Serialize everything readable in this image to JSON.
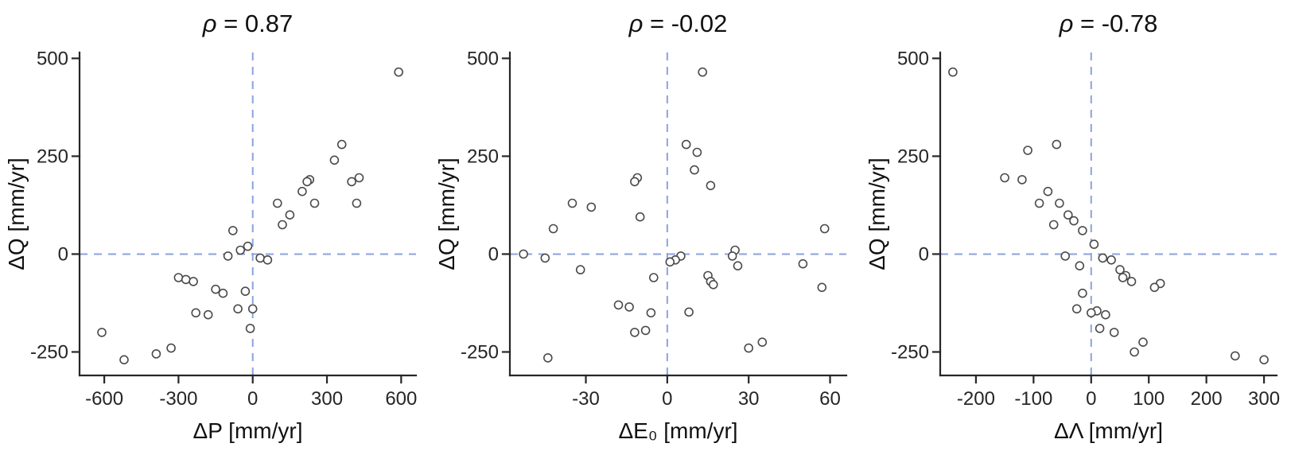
{
  "figure": {
    "background": "#ffffff"
  },
  "style": {
    "axis_color": "#262626",
    "text_color": "#111111",
    "crosshair_color": "#8ba2de",
    "point_stroke": "#4a4a4a",
    "point_fill": "#ffffff"
  },
  "chart_data": [
    {
      "type": "scatter",
      "title": "ρ = 0.87",
      "title_symbol": "ρ",
      "title_rest": " = 0.87",
      "xlabel": "ΔP [mm/yr]",
      "ylabel": "ΔQ [mm/yr]",
      "xlim": [
        -700,
        660
      ],
      "ylim": [
        -310,
        515
      ],
      "xticks": [
        -600,
        -300,
        0,
        300,
        600
      ],
      "yticks": [
        -250,
        0,
        250,
        500
      ],
      "grid": false,
      "legend": false,
      "crosshair": {
        "x": 0,
        "y": 0
      },
      "points": [
        [
          590,
          465
        ],
        [
          360,
          280
        ],
        [
          330,
          240
        ],
        [
          430,
          195
        ],
        [
          400,
          185
        ],
        [
          230,
          190
        ],
        [
          220,
          185
        ],
        [
          200,
          160
        ],
        [
          250,
          130
        ],
        [
          420,
          130
        ],
        [
          100,
          130
        ],
        [
          150,
          100
        ],
        [
          120,
          75
        ],
        [
          -80,
          60
        ],
        [
          -20,
          20
        ],
        [
          -50,
          10
        ],
        [
          -100,
          -5
        ],
        [
          30,
          -10
        ],
        [
          60,
          -15
        ],
        [
          -300,
          -60
        ],
        [
          -270,
          -65
        ],
        [
          -240,
          -70
        ],
        [
          -150,
          -90
        ],
        [
          -30,
          -95
        ],
        [
          -120,
          -100
        ],
        [
          -60,
          -140
        ],
        [
          0,
          -140
        ],
        [
          -230,
          -150
        ],
        [
          -180,
          -155
        ],
        [
          -10,
          -190
        ],
        [
          -610,
          -200
        ],
        [
          -330,
          -240
        ],
        [
          -390,
          -255
        ],
        [
          -520,
          -270
        ]
      ]
    },
    {
      "type": "scatter",
      "title": "ρ = -0.02",
      "title_symbol": "ρ",
      "title_rest": " = -0.02",
      "xlabel": "ΔE₀ [mm/yr]",
      "ylabel": "ΔQ [mm/yr]",
      "xlim": [
        -58,
        66
      ],
      "ylim": [
        -310,
        515
      ],
      "xticks": [
        -30,
        0,
        30,
        60
      ],
      "yticks": [
        -250,
        0,
        250,
        500
      ],
      "grid": false,
      "legend": false,
      "crosshair": {
        "x": 0,
        "y": 0
      },
      "points": [
        [
          13,
          465
        ],
        [
          7,
          280
        ],
        [
          11,
          260
        ],
        [
          10,
          215
        ],
        [
          -11,
          195
        ],
        [
          -12,
          185
        ],
        [
          16,
          175
        ],
        [
          -35,
          130
        ],
        [
          -28,
          120
        ],
        [
          -10,
          95
        ],
        [
          -42,
          65
        ],
        [
          58,
          65
        ],
        [
          25,
          10
        ],
        [
          -53,
          0
        ],
        [
          5,
          -5
        ],
        [
          24,
          -5
        ],
        [
          -45,
          -10
        ],
        [
          3,
          -15
        ],
        [
          1,
          -20
        ],
        [
          50,
          -25
        ],
        [
          26,
          -30
        ],
        [
          -32,
          -40
        ],
        [
          15,
          -55
        ],
        [
          -5,
          -60
        ],
        [
          16,
          -70
        ],
        [
          17,
          -78
        ],
        [
          57,
          -85
        ],
        [
          -18,
          -130
        ],
        [
          -14,
          -135
        ],
        [
          8,
          -148
        ],
        [
          -6,
          -150
        ],
        [
          -8,
          -195
        ],
        [
          -12,
          -200
        ],
        [
          35,
          -225
        ],
        [
          30,
          -240
        ],
        [
          -44,
          -265
        ]
      ]
    },
    {
      "type": "scatter",
      "title": "ρ = -0.78",
      "title_symbol": "ρ",
      "title_rest": " = -0.78",
      "xlabel": "ΔΛ [mm/yr]",
      "ylabel": "ΔQ [mm/yr]",
      "xlim": [
        -262,
        322
      ],
      "ylim": [
        -310,
        515
      ],
      "xticks": [
        -200,
        -100,
        0,
        100,
        200,
        300
      ],
      "yticks": [
        -250,
        0,
        250,
        500
      ],
      "grid": false,
      "legend": false,
      "crosshair": {
        "x": 0,
        "y": 0
      },
      "points": [
        [
          -240,
          465
        ],
        [
          -60,
          280
        ],
        [
          -110,
          265
        ],
        [
          -150,
          195
        ],
        [
          -120,
          190
        ],
        [
          -75,
          160
        ],
        [
          -90,
          130
        ],
        [
          -55,
          130
        ],
        [
          -40,
          100
        ],
        [
          -30,
          85
        ],
        [
          -65,
          75
        ],
        [
          -15,
          60
        ],
        [
          5,
          25
        ],
        [
          -45,
          -5
        ],
        [
          20,
          -10
        ],
        [
          35,
          -15
        ],
        [
          -20,
          -30
        ],
        [
          50,
          -40
        ],
        [
          60,
          -55
        ],
        [
          55,
          -60
        ],
        [
          70,
          -70
        ],
        [
          120,
          -75
        ],
        [
          110,
          -85
        ],
        [
          -15,
          -100
        ],
        [
          -25,
          -140
        ],
        [
          10,
          -145
        ],
        [
          0,
          -150
        ],
        [
          25,
          -155
        ],
        [
          15,
          -190
        ],
        [
          40,
          -200
        ],
        [
          90,
          -225
        ],
        [
          75,
          -250
        ],
        [
          250,
          -260
        ],
        [
          300,
          -270
        ]
      ]
    }
  ]
}
